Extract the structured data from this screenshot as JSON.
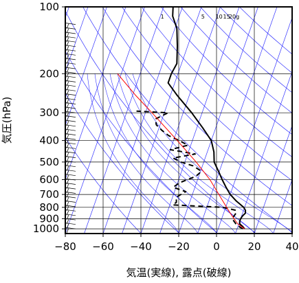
{
  "chart_data": {
    "type": "line",
    "diagram": "skew-T log-P",
    "xlabel": "気温(実線), 露点(破線)",
    "ylabel": "気圧(hPa)",
    "x_ticks": [
      -80,
      -60,
      -40,
      -20,
      0,
      20,
      40
    ],
    "y_ticks": [
      100,
      200,
      300,
      400,
      500,
      600,
      700,
      800,
      900,
      1000
    ],
    "x_tick_labels": [
      "−80",
      "−60",
      "−40",
      "−20",
      "0",
      "20",
      "40"
    ],
    "y_tick_labels": [
      "100",
      "200",
      "300",
      "400",
      "500",
      "600",
      "700",
      "800",
      "900",
      "1000"
    ],
    "xlim": [
      -80,
      40
    ],
    "ylim": [
      1050,
      100
    ],
    "y_scale": "log",
    "grid": true,
    "mixing_ratio_labels": [
      "1",
      "5",
      "10",
      "15",
      "20g"
    ],
    "colors": {
      "grid": "#000000",
      "isotherm_adiabat": "#3333ff",
      "temperature": "#000000",
      "dewpoint": "#000000",
      "parcel": "#ff0000",
      "wind_barbs": "#000000"
    },
    "series": [
      {
        "role": "temperature",
        "style": "solid",
        "points": [
          {
            "p": 1000,
            "t": 14.0
          },
          {
            "p": 975,
            "t": 12.5
          },
          {
            "p": 950,
            "t": 10.5
          },
          {
            "p": 925,
            "t": 10.0
          },
          {
            "p": 900,
            "t": 10.0
          },
          {
            "p": 875,
            "t": 10.5
          },
          {
            "p": 850,
            "t": 11.5
          },
          {
            "p": 825,
            "t": 11.0
          },
          {
            "p": 800,
            "t": 9.5
          },
          {
            "p": 750,
            "t": 4.5
          },
          {
            "p": 700,
            "t": 0.0
          },
          {
            "p": 650,
            "t": -3.5
          },
          {
            "p": 600,
            "t": -7.0
          },
          {
            "p": 550,
            "t": -10.5
          },
          {
            "p": 500,
            "t": -14.5
          },
          {
            "p": 450,
            "t": -16.5
          },
          {
            "p": 400,
            "t": -20.0
          },
          {
            "p": 350,
            "t": -27.0
          },
          {
            "p": 300,
            "t": -35.5
          },
          {
            "p": 250,
            "t": -46.5
          },
          {
            "p": 220,
            "t": -53.5
          },
          {
            "p": 200,
            "t": -53.5
          },
          {
            "p": 180,
            "t": -52.5
          },
          {
            "p": 150,
            "t": -55.5
          },
          {
            "p": 125,
            "t": -59.0
          },
          {
            "p": 110,
            "t": -63.5
          },
          {
            "p": 100,
            "t": -65.0
          }
        ]
      },
      {
        "role": "dewpoint",
        "style": "dashed",
        "points": [
          {
            "p": 1000,
            "t": 13.0
          },
          {
            "p": 975,
            "t": 10.5
          },
          {
            "p": 950,
            "t": 8.5
          },
          {
            "p": 925,
            "t": 7.0
          },
          {
            "p": 900,
            "t": 5.5
          },
          {
            "p": 875,
            "t": 6.0
          },
          {
            "p": 850,
            "t": 6.5
          },
          {
            "p": 825,
            "t": 6.0
          },
          {
            "p": 800,
            "t": -1.5
          },
          {
            "p": 780,
            "t": -28.5
          },
          {
            "p": 760,
            "t": -27.0
          },
          {
            "p": 720,
            "t": -28.0
          },
          {
            "p": 680,
            "t": -24.0
          },
          {
            "p": 650,
            "t": -31.5
          },
          {
            "p": 620,
            "t": -29.0
          },
          {
            "p": 580,
            "t": -21.5
          },
          {
            "p": 550,
            "t": -19.5
          },
          {
            "p": 520,
            "t": -25.0
          },
          {
            "p": 500,
            "t": -32.0
          },
          {
            "p": 480,
            "t": -37.0
          },
          {
            "p": 460,
            "t": -26.0
          },
          {
            "p": 440,
            "t": -40.0
          },
          {
            "p": 420,
            "t": -31.5
          },
          {
            "p": 400,
            "t": -37.0
          },
          {
            "p": 380,
            "t": -43.5
          },
          {
            "p": 360,
            "t": -48.0
          },
          {
            "p": 340,
            "t": -52.0
          },
          {
            "p": 320,
            "t": -53.5
          },
          {
            "p": 300,
            "t": -48.0
          },
          {
            "p": 295,
            "t": -65.0
          }
        ]
      },
      {
        "role": "parcel",
        "style": "solid",
        "points": [
          {
            "p": 1000,
            "t": 14.0
          },
          {
            "p": 950,
            "t": 9.5
          },
          {
            "p": 900,
            "t": 6.5
          },
          {
            "p": 850,
            "t": 3.5
          },
          {
            "p": 800,
            "t": 0.5
          },
          {
            "p": 700,
            "t": -6.0
          },
          {
            "p": 600,
            "t": -13.5
          },
          {
            "p": 500,
            "t": -24.0
          },
          {
            "p": 400,
            "t": -38.0
          },
          {
            "p": 300,
            "t": -56.5
          },
          {
            "p": 250,
            "t": -68.5
          },
          {
            "p": 200,
            "t": -82.0
          }
        ]
      }
    ]
  }
}
